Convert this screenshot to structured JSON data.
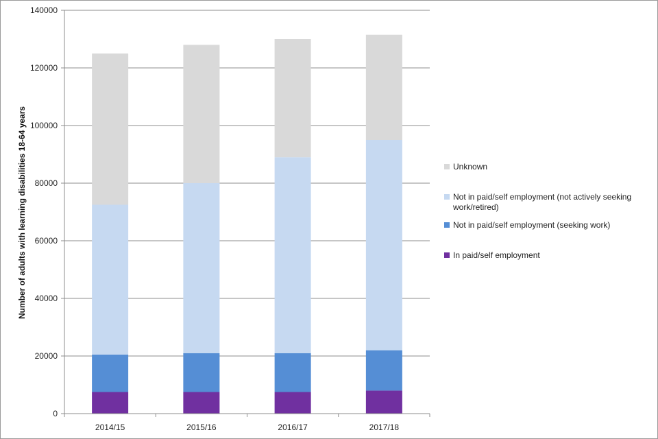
{
  "chart_data": {
    "type": "bar",
    "stacked": true,
    "categories": [
      "2014/15",
      "2015/16",
      "2016/17",
      "2017/18"
    ],
    "series": [
      {
        "name": "In paid/self employment",
        "color": "#7030a0",
        "values": [
          7500,
          7500,
          7500,
          8000
        ]
      },
      {
        "name": "Not in paid/self employment (seeking work)",
        "color": "#558ed5",
        "values": [
          13000,
          13500,
          13500,
          14000
        ]
      },
      {
        "name": "Not in paid/self employment (not actively seeking work/retired)",
        "color": "#c6d9f1",
        "values": [
          52000,
          59000,
          68000,
          73000
        ]
      },
      {
        "name": "Unknown",
        "color": "#d9d9d9",
        "values": [
          52500,
          48000,
          41000,
          36500
        ]
      }
    ],
    "title": "",
    "xlabel": "",
    "ylabel": "Number of adults with learning disabilities 18-64 years",
    "ylim": [
      0,
      140000
    ],
    "yticks": [
      0,
      20000,
      40000,
      60000,
      80000,
      100000,
      120000,
      140000
    ],
    "grid": true,
    "legend_position": "right"
  }
}
